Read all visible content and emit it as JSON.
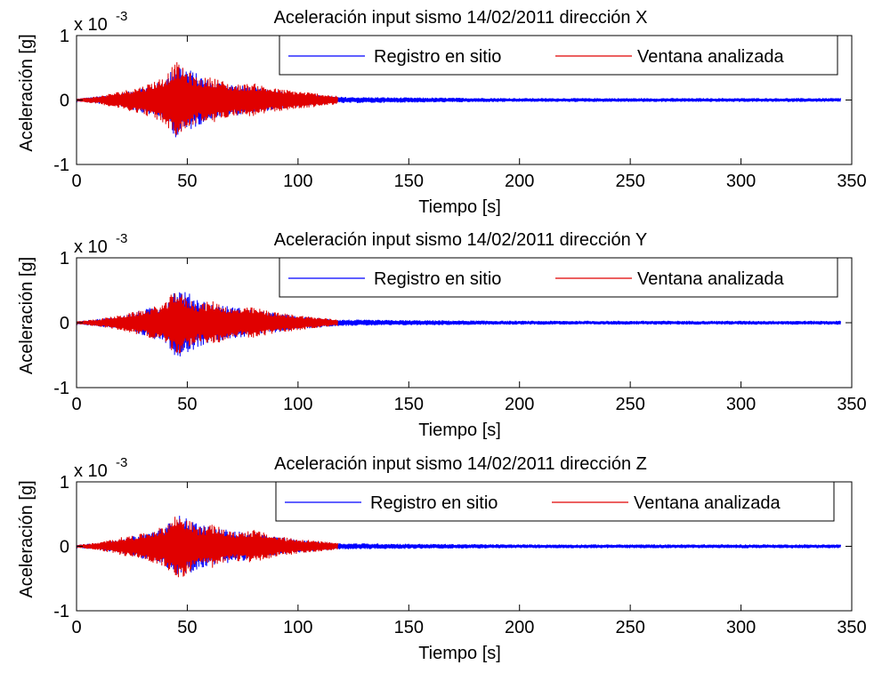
{
  "colors": {
    "registro": "#0000ff",
    "ventana": "#e00000",
    "axes": "#000000",
    "background": "#ffffff"
  },
  "chart_data": [
    {
      "type": "line",
      "title": "Aceleración input sismo 14/02/2011 dirección X",
      "xlabel": "Tiempo [s]",
      "ylabel": "Aceleración [g]",
      "y_multiplier": "x 10",
      "y_exponent": "-3",
      "xlim": [
        0,
        350
      ],
      "ylim": [
        -1,
        1
      ],
      "xticks": [
        "0",
        "50",
        "100",
        "150",
        "200",
        "250",
        "300",
        "350"
      ],
      "yticks": [
        "-1",
        "0",
        "1"
      ],
      "grid": false,
      "legend_position": "top-right",
      "series": [
        {
          "name": "Registro en sitio",
          "color": "#0000ff",
          "x_range": [
            0,
            345
          ],
          "envelope": {
            "x": [
              0,
              20,
              40,
              45,
              60,
              80,
              100,
              118,
              150,
              200,
              250,
              300,
              345
            ],
            "y": [
              0.02,
              0.1,
              0.3,
              0.6,
              0.3,
              0.2,
              0.1,
              0.05,
              0.04,
              0.03,
              0.03,
              0.03,
              0.03
            ]
          }
        },
        {
          "name": "Ventana analizada",
          "color": "#e00000",
          "x_range": [
            0,
            118
          ],
          "envelope": {
            "x": [
              0,
              10,
              20,
              30,
              40,
              45,
              48,
              55,
              62,
              70,
              80,
              90,
              100,
              110,
              118
            ],
            "y": [
              0.02,
              0.06,
              0.14,
              0.22,
              0.38,
              0.6,
              0.5,
              0.34,
              0.36,
              0.24,
              0.26,
              0.18,
              0.14,
              0.1,
              0.06
            ]
          }
        }
      ]
    },
    {
      "type": "line",
      "title": "Aceleración input sismo 14/02/2011 dirección Y",
      "xlabel": "Tiempo [s]",
      "ylabel": "Aceleración [g]",
      "y_multiplier": "x 10",
      "y_exponent": "-3",
      "xlim": [
        0,
        350
      ],
      "ylim": [
        -1,
        1
      ],
      "xticks": [
        "0",
        "50",
        "100",
        "150",
        "200",
        "250",
        "300",
        "350"
      ],
      "yticks": [
        "-1",
        "0",
        "1"
      ],
      "grid": false,
      "legend_position": "top-right",
      "series": [
        {
          "name": "Registro en sitio",
          "color": "#0000ff",
          "x_range": [
            0,
            345
          ],
          "envelope": {
            "x": [
              0,
              20,
              40,
              45,
              60,
              80,
              100,
              118,
              150,
              200,
              250,
              300,
              345
            ],
            "y": [
              0.02,
              0.1,
              0.3,
              0.55,
              0.3,
              0.2,
              0.1,
              0.05,
              0.04,
              0.03,
              0.03,
              0.03,
              0.03
            ]
          }
        },
        {
          "name": "Ventana analizada",
          "color": "#e00000",
          "x_range": [
            0,
            118
          ],
          "envelope": {
            "x": [
              0,
              10,
              20,
              30,
              40,
              45,
              48,
              55,
              62,
              70,
              80,
              90,
              100,
              110,
              118
            ],
            "y": [
              0.02,
              0.06,
              0.12,
              0.2,
              0.3,
              0.55,
              0.42,
              0.3,
              0.34,
              0.22,
              0.24,
              0.16,
              0.12,
              0.08,
              0.05
            ]
          }
        }
      ]
    },
    {
      "type": "line",
      "title": "Aceleración input sismo 14/02/2011 dirección Z",
      "xlabel": "Tiempo [s]",
      "ylabel": "Aceleración [g]",
      "y_multiplier": "x 10",
      "y_exponent": "-3",
      "xlim": [
        0,
        350
      ],
      "ylim": [
        -1,
        1
      ],
      "xticks": [
        "0",
        "50",
        "100",
        "150",
        "200",
        "250",
        "300",
        "350"
      ],
      "yticks": [
        "-1",
        "0",
        "1"
      ],
      "grid": false,
      "legend_position": "top-right",
      "series": [
        {
          "name": "Registro en sitio",
          "color": "#0000ff",
          "x_range": [
            0,
            345
          ],
          "envelope": {
            "x": [
              0,
              20,
              40,
              45,
              60,
              80,
              100,
              118,
              150,
              200,
              250,
              300,
              345
            ],
            "y": [
              0.02,
              0.1,
              0.3,
              0.5,
              0.3,
              0.2,
              0.1,
              0.05,
              0.04,
              0.03,
              0.03,
              0.03,
              0.03
            ]
          }
        },
        {
          "name": "Ventana analizada",
          "color": "#e00000",
          "x_range": [
            0,
            118
          ],
          "envelope": {
            "x": [
              0,
              10,
              20,
              30,
              40,
              45,
              48,
              55,
              62,
              70,
              80,
              90,
              100,
              110,
              118
            ],
            "y": [
              0.02,
              0.06,
              0.14,
              0.2,
              0.32,
              0.5,
              0.48,
              0.3,
              0.34,
              0.22,
              0.26,
              0.16,
              0.12,
              0.08,
              0.05
            ]
          }
        }
      ]
    }
  ]
}
